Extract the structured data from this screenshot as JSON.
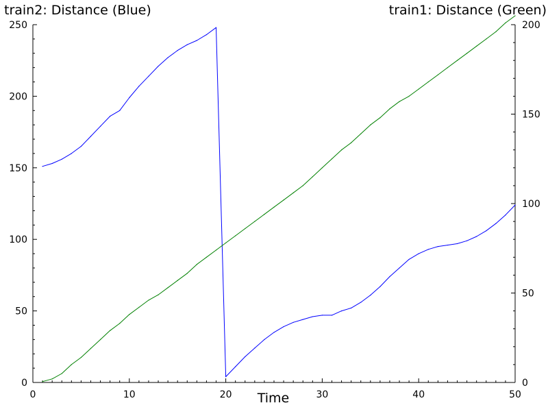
{
  "chart_data": {
    "type": "line",
    "xlabel": "Time",
    "xlim": [
      0,
      50
    ],
    "x_ticks": [
      0,
      10,
      20,
      30,
      40,
      50
    ],
    "grid": false,
    "axes": {
      "left": {
        "label": "train2: Distance (Blue)",
        "lim": [
          0,
          250
        ],
        "ticks": [
          0,
          50,
          100,
          150,
          200,
          250
        ]
      },
      "right": {
        "label": "train1: Distance (Green)",
        "lim": [
          0,
          200
        ],
        "ticks": [
          0,
          50,
          100,
          150,
          200
        ]
      }
    },
    "series": [
      {
        "axis": "left",
        "color": "#0000ff",
        "x": [
          1,
          2,
          3,
          4,
          5,
          6,
          7,
          8,
          9,
          10,
          11,
          12,
          13,
          14,
          15,
          16,
          17,
          18,
          19,
          20,
          21,
          22,
          23,
          24,
          25,
          26,
          27,
          28,
          29,
          30,
          31,
          32,
          33,
          34,
          35,
          36,
          37,
          38,
          39,
          40,
          41,
          42,
          43,
          44,
          45,
          46,
          47,
          48,
          49,
          50
        ],
        "values": [
          151,
          153,
          156,
          160,
          165,
          172,
          179,
          186,
          190,
          199,
          207,
          214,
          221,
          227,
          232,
          236,
          239,
          243,
          248,
          4,
          11,
          18,
          24,
          30,
          35,
          39,
          42,
          44,
          46,
          47,
          47,
          50,
          52,
          56,
          61,
          67,
          74,
          80,
          86,
          90,
          93,
          95,
          96,
          97,
          99,
          102,
          106,
          111,
          117,
          124
        ]
      },
      {
        "axis": "right",
        "color": "#008000",
        "x": [
          1,
          2,
          3,
          4,
          5,
          6,
          7,
          8,
          9,
          10,
          11,
          12,
          13,
          14,
          15,
          16,
          17,
          18,
          19,
          20,
          21,
          22,
          23,
          24,
          25,
          26,
          27,
          28,
          29,
          30,
          31,
          32,
          33,
          34,
          35,
          36,
          37,
          38,
          39,
          40,
          41,
          42,
          43,
          44,
          45,
          46,
          47,
          48,
          49,
          50
        ],
        "values": [
          0.5,
          2,
          5,
          10,
          14,
          19,
          24,
          29,
          33,
          38,
          42,
          46,
          49,
          53,
          57,
          61,
          66,
          70,
          74,
          78,
          82,
          86,
          90,
          94,
          98,
          102,
          106,
          110,
          115,
          120,
          125,
          130,
          134,
          139,
          144,
          148,
          153,
          157,
          160,
          164,
          168,
          172,
          176,
          180,
          184,
          188,
          192,
          196,
          201,
          205
        ]
      }
    ]
  }
}
